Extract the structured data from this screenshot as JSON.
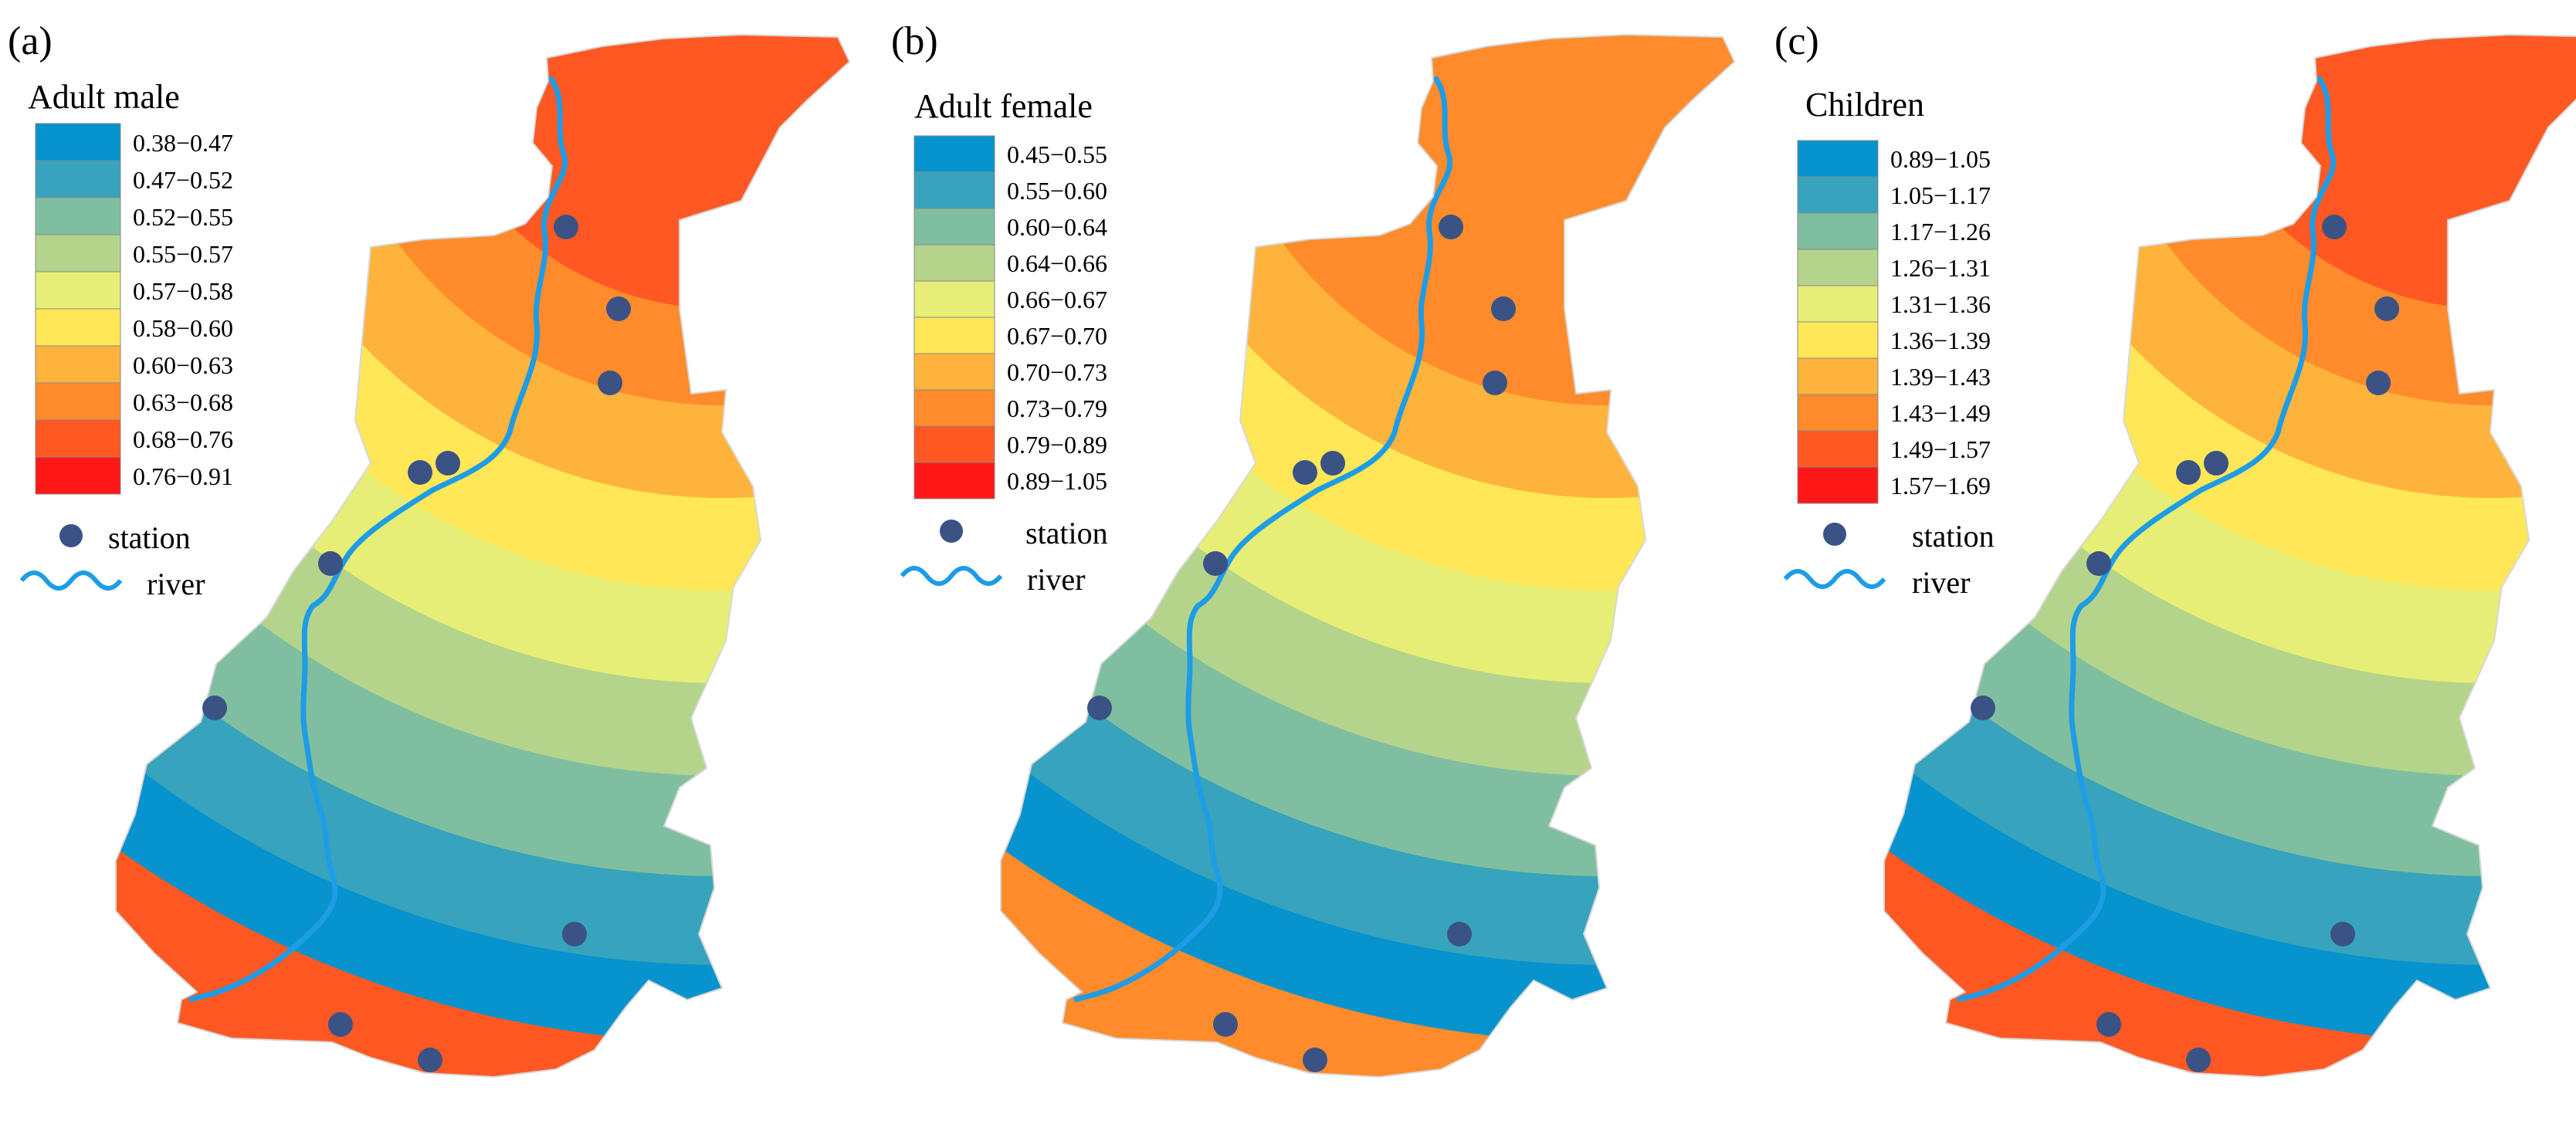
{
  "figure": {
    "station_label": "station",
    "river_label": "river",
    "colors": {
      "ramp": [
        "#0693CE",
        "#37A3BC",
        "#7FBF9F",
        "#B5D48B",
        "#E6EE75",
        "#FFE757",
        "#FEB33C",
        "#FF8B2B",
        "#FF5822",
        "#FF1818"
      ],
      "station": "#3B5285",
      "river": "#1E9CE6"
    },
    "panels": [
      {
        "id": "a",
        "label": "(a)",
        "title": "Adult male",
        "classes": [
          "0.38−0.47",
          "0.47−0.52",
          "0.52−0.55",
          "0.55−0.57",
          "0.57−0.58",
          "0.58−0.60",
          "0.60−0.63",
          "0.63−0.68",
          "0.68−0.76",
          "0.76−0.91"
        ],
        "max_class": 8
      },
      {
        "id": "b",
        "label": "(b)",
        "title": "Adult female",
        "classes": [
          "0.45−0.55",
          "0.55−0.60",
          "0.60−0.64",
          "0.64−0.66",
          "0.66−0.67",
          "0.67−0.70",
          "0.70−0.73",
          "0.73−0.79",
          "0.79−0.89",
          "0.89−1.05"
        ],
        "max_class": 7
      },
      {
        "id": "c",
        "label": "(c)",
        "title": "Children",
        "classes": [
          "0.89−1.05",
          "1.05−1.17",
          "1.17−1.26",
          "1.26−1.31",
          "1.31−1.36",
          "1.36−1.39",
          "1.39−1.43",
          "1.43−1.49",
          "1.49−1.57",
          "1.57−1.69"
        ],
        "max_class": 8
      }
    ]
  }
}
